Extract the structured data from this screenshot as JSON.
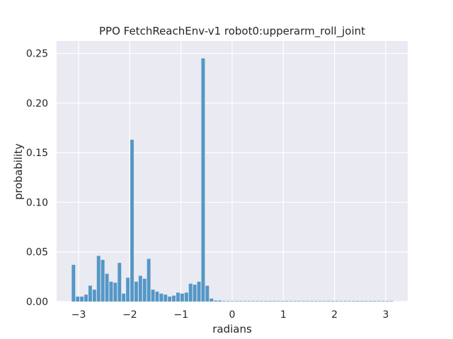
{
  "chart_data": {
    "type": "bar",
    "title": "PPO FetchReachEnv-v1 robot0:upperarm_roll_joint",
    "xlabel": "radians",
    "ylabel": "probability",
    "xlim": [
      -3.43,
      3.43
    ],
    "ylim": [
      0,
      0.2625
    ],
    "grid": true,
    "background": "#eaeaf2",
    "bar_color": "#4c92c3",
    "bin_width": 0.0817,
    "bin_start": -3.1416,
    "x_ticks": [
      -3,
      -2,
      -1,
      0,
      1,
      2,
      3
    ],
    "x_tick_labels": [
      "−3",
      "−2",
      "−1",
      "0",
      "1",
      "2",
      "3"
    ],
    "y_ticks": [
      0.0,
      0.05,
      0.1,
      0.15,
      0.2,
      0.25
    ],
    "y_tick_labels": [
      "0.00",
      "0.05",
      "0.10",
      "0.15",
      "0.20",
      "0.25"
    ],
    "values": [
      0.037,
      0.005,
      0.005,
      0.007,
      0.016,
      0.012,
      0.046,
      0.042,
      0.028,
      0.02,
      0.019,
      0.039,
      0.008,
      0.024,
      0.163,
      0.02,
      0.026,
      0.023,
      0.043,
      0.012,
      0.01,
      0.008,
      0.007,
      0.005,
      0.006,
      0.009,
      0.008,
      0.009,
      0.018,
      0.017,
      0.02,
      0.245,
      0.016,
      0.003,
      0.001,
      0.001,
      0.0005,
      0.0005,
      0.0005,
      0.0005,
      0.0005,
      0.0005,
      0.0005,
      0.0005,
      0.0005,
      0.0005,
      0.0005,
      0.0005,
      0.0005,
      0.0005,
      0.0005,
      0.0005,
      0.0005,
      0.0005,
      0.0005,
      0.0005,
      0.0005,
      0.0005,
      0.0005,
      0.0005,
      0.0005,
      0.0005,
      0.0005,
      0.0005,
      0.0005,
      0.0005,
      0.0005,
      0.0005,
      0.0005,
      0.0005,
      0.0005,
      0.0005,
      0.0005,
      0.0005,
      0.0005,
      0.0005,
      0.0005
    ]
  }
}
